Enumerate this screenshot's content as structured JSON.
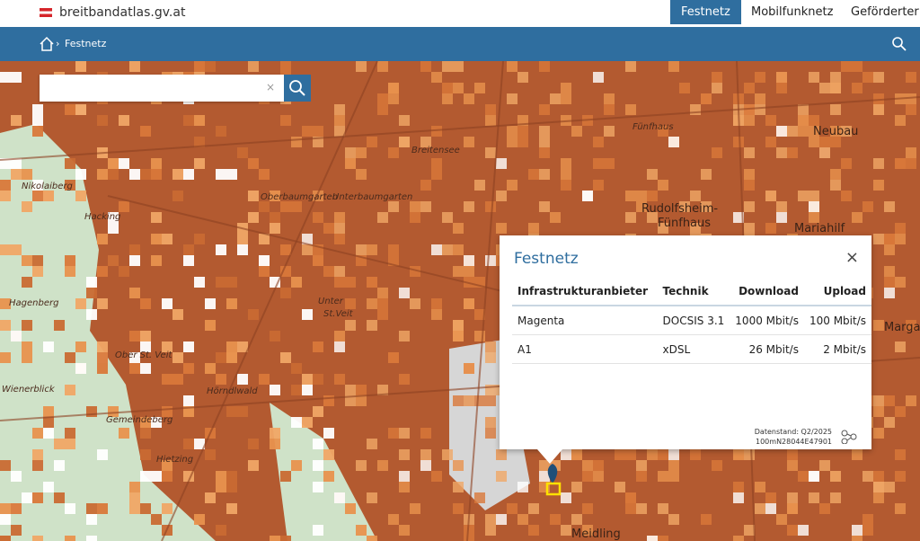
{
  "header": {
    "site": "breitbandatlas.gv.at",
    "tabs": [
      "Festnetz",
      "Mobilfunknetz",
      "Geförderter Au"
    ]
  },
  "breadcrumb": {
    "current": "Festnetz"
  },
  "map": {
    "labels": [
      "Neubau",
      "Rudolfsheim-",
      "Fünfhaus",
      "Mariahilf",
      "Margar",
      "Meidling",
      "Nikolaiberg",
      "Hacking",
      "Hagenberg",
      "Wienerblick",
      "Ober St. Veit",
      "Unter",
      "St.Veit",
      "Breitensee",
      "Fünfhaus",
      "Oberbaumgarten",
      "Unterbaumgarten",
      "Gemeindeberg",
      "Hörndlwald",
      "Hietzing"
    ]
  },
  "popup": {
    "title": "Festnetz",
    "table": {
      "columns": [
        "Infrastrukturanbieter",
        "Technik",
        "Download",
        "Upload"
      ],
      "rows": [
        [
          "Magenta",
          "DOCSIS 3.1",
          "1000 Mbit/s",
          "100 Mbit/s"
        ],
        [
          "A1",
          "xDSL",
          "26 Mbit/s",
          "2 Mbit/s"
        ]
      ]
    },
    "footer": [
      "Datenstand: Q2/2025",
      "100mN28044E47901"
    ]
  }
}
